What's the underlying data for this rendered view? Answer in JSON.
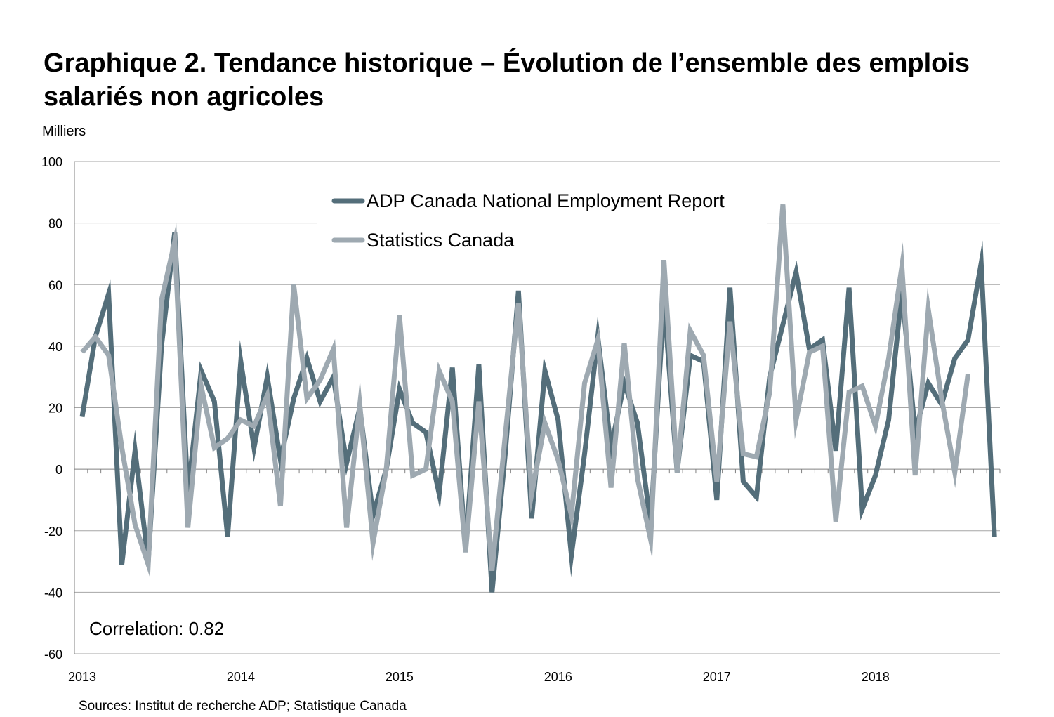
{
  "title": "Graphique 2. Tendance historique – Évolution de l’ensemble des emplois salariés non agricoles",
  "unit_label": "Milliers",
  "source": "Sources: Institut de recherche ADP; Statistique Canada",
  "annotation": "Correlation: 0.82",
  "colors": {
    "adp": "#546e7a",
    "statcan": "#9ea9b1",
    "grid": "#a6a6a6",
    "axis": "#808080"
  },
  "chart_data": {
    "type": "line",
    "title": "Graphique 2. Tendance historique – Évolution de l’ensemble des emplois salariés non agricoles",
    "ylabel": "Milliers",
    "xlabel": "",
    "x_start": "2013-01",
    "x_end": "2018-10",
    "x_tick_labels": [
      "2013",
      "2014",
      "2015",
      "2016",
      "2017",
      "2018"
    ],
    "y_ticks": [
      100,
      80,
      60,
      40,
      20,
      0,
      -20,
      -40,
      -60
    ],
    "ylim": [
      -60,
      100
    ],
    "grid": true,
    "legend_position": "top-center",
    "series": [
      {
        "name": "ADP Canada National Employment Report",
        "color": "#546e7a",
        "values": [
          17,
          43,
          57,
          -31,
          6,
          -30,
          40,
          77,
          -8,
          32,
          22,
          -22,
          35,
          7,
          30,
          3,
          23,
          36,
          22,
          30,
          2,
          20,
          -15,
          0,
          26,
          15,
          12,
          -8,
          33,
          -26,
          34,
          -40,
          5,
          58,
          -16,
          32,
          16,
          -28,
          5,
          43,
          7,
          28,
          15,
          -18,
          55,
          -1,
          37,
          35,
          -10,
          59,
          -4,
          -9,
          30,
          47,
          64,
          39,
          42,
          6,
          59,
          -13,
          -2,
          16,
          58,
          12,
          28,
          21,
          36,
          42,
          67,
          -22
        ]
      },
      {
        "name": "Statistics Canada",
        "color": "#9ea9b1",
        "values": [
          38,
          43,
          37,
          7,
          -18,
          -31,
          55,
          74,
          -19,
          27,
          7,
          10,
          16,
          14,
          24,
          -12,
          60,
          23,
          29,
          39,
          -19,
          21,
          -24,
          0,
          50,
          -2,
          0,
          32,
          22,
          -27,
          22,
          -33,
          11,
          54,
          -8,
          15,
          3,
          -15,
          28,
          42,
          -6,
          41,
          -3,
          -23,
          68,
          -1,
          45,
          37,
          -4,
          48,
          5,
          4,
          25,
          86,
          16,
          38,
          40,
          -17,
          25,
          27,
          14,
          36,
          66,
          -2,
          52,
          23,
          -1,
          31
        ]
      }
    ]
  }
}
